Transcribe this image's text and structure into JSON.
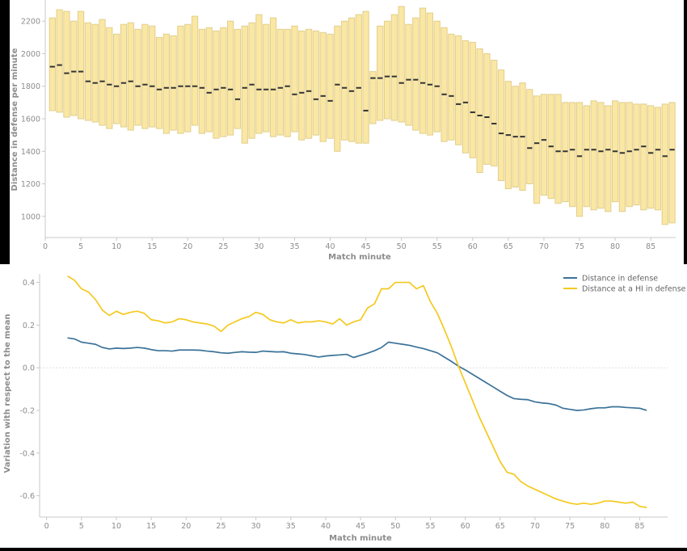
{
  "chart_data": [
    {
      "type": "bar",
      "chart_kind": "floating range bars with median markers",
      "xlabel": "Match minute",
      "ylabel": "Distance in defense per minute",
      "xlim": [
        0,
        88.5
      ],
      "ylim": [
        870,
        2330
      ],
      "x_ticks": [
        0,
        5,
        10,
        15,
        20,
        25,
        30,
        35,
        40,
        45,
        50,
        55,
        60,
        65,
        70,
        75,
        80,
        85
      ],
      "y_ticks": [
        1000,
        1200,
        1400,
        1600,
        1800,
        2000,
        2200
      ],
      "grid": false,
      "bar_fill": "#fbe7a4",
      "bar_edge": "#e0cf8c",
      "median_color": "#333333",
      "x": [
        1,
        2,
        3,
        4,
        5,
        6,
        7,
        8,
        9,
        10,
        11,
        12,
        13,
        14,
        15,
        16,
        17,
        18,
        19,
        20,
        21,
        22,
        23,
        24,
        25,
        26,
        27,
        28,
        29,
        30,
        31,
        32,
        33,
        34,
        35,
        36,
        37,
        38,
        39,
        40,
        41,
        42,
        43,
        44,
        45,
        46,
        47,
        48,
        49,
        50,
        51,
        52,
        53,
        54,
        55,
        56,
        57,
        58,
        59,
        60,
        61,
        62,
        63,
        64,
        65,
        66,
        67,
        68,
        69,
        70,
        71,
        72,
        73,
        74,
        75,
        76,
        77,
        78,
        79,
        80,
        81,
        82,
        83,
        84,
        85,
        86,
        87,
        88
      ],
      "low": [
        1650,
        1640,
        1610,
        1620,
        1600,
        1590,
        1580,
        1560,
        1540,
        1570,
        1550,
        1530,
        1560,
        1540,
        1550,
        1540,
        1510,
        1530,
        1510,
        1520,
        1560,
        1510,
        1520,
        1480,
        1490,
        1500,
        1540,
        1450,
        1480,
        1510,
        1520,
        1490,
        1500,
        1490,
        1520,
        1470,
        1480,
        1500,
        1460,
        1480,
        1400,
        1470,
        1460,
        1450,
        1450,
        1570,
        1590,
        1600,
        1590,
        1580,
        1560,
        1530,
        1510,
        1500,
        1520,
        1460,
        1470,
        1440,
        1390,
        1360,
        1270,
        1320,
        1310,
        1220,
        1170,
        1180,
        1160,
        1200,
        1080,
        1130,
        1110,
        1080,
        1090,
        1060,
        1000,
        1060,
        1040,
        1050,
        1030,
        1090,
        1030,
        1060,
        1070,
        1040,
        1050,
        1040,
        950,
        960
      ],
      "high": [
        2220,
        2270,
        2260,
        2200,
        2260,
        2190,
        2180,
        2210,
        2160,
        2120,
        2180,
        2190,
        2150,
        2180,
        2170,
        2100,
        2120,
        2110,
        2170,
        2180,
        2230,
        2150,
        2160,
        2140,
        2160,
        2200,
        2150,
        2170,
        2190,
        2240,
        2180,
        2220,
        2150,
        2150,
        2170,
        2140,
        2150,
        2140,
        2130,
        2120,
        2170,
        2200,
        2220,
        2240,
        2260,
        1890,
        2170,
        2200,
        2240,
        2290,
        2180,
        2220,
        2280,
        2250,
        2200,
        2160,
        2120,
        2110,
        2080,
        2070,
        2030,
        2000,
        1960,
        1900,
        1830,
        1800,
        1820,
        1780,
        1740,
        1750,
        1750,
        1750,
        1700,
        1700,
        1700,
        1680,
        1710,
        1700,
        1680,
        1710,
        1700,
        1700,
        1690,
        1690,
        1680,
        1670,
        1690,
        1700
      ],
      "median": [
        1920,
        1930,
        1880,
        1890,
        1890,
        1830,
        1820,
        1830,
        1810,
        1800,
        1820,
        1830,
        1800,
        1810,
        1800,
        1780,
        1790,
        1790,
        1800,
        1800,
        1800,
        1790,
        1760,
        1780,
        1790,
        1780,
        1720,
        1790,
        1810,
        1780,
        1780,
        1780,
        1790,
        1800,
        1750,
        1760,
        1770,
        1720,
        1740,
        1710,
        1810,
        1790,
        1770,
        1790,
        1650,
        1850,
        1850,
        1860,
        1860,
        1820,
        1840,
        1840,
        1820,
        1810,
        1800,
        1750,
        1740,
        1690,
        1700,
        1640,
        1620,
        1610,
        1570,
        1510,
        1500,
        1490,
        1490,
        1420,
        1450,
        1470,
        1430,
        1400,
        1400,
        1410,
        1370,
        1410,
        1410,
        1400,
        1410,
        1400,
        1390,
        1400,
        1410,
        1430,
        1390,
        1410,
        1370,
        1410
      ]
    },
    {
      "type": "line",
      "xlabel": "Match minute",
      "ylabel": "Variation with respect to the mean",
      "xlim": [
        -1,
        89
      ],
      "ylim": [
        -0.7,
        0.44
      ],
      "x_ticks": [
        0,
        5,
        10,
        15,
        20,
        25,
        30,
        35,
        40,
        45,
        50,
        55,
        60,
        65,
        70,
        75,
        80,
        85
      ],
      "y_ticks": [
        -0.6,
        -0.4,
        -0.2,
        0.0,
        0.2,
        0.4
      ],
      "zero_line": true,
      "grid": false,
      "legend_position": "top-right",
      "x": [
        3,
        4,
        5,
        6,
        7,
        8,
        9,
        10,
        11,
        12,
        13,
        14,
        15,
        16,
        17,
        18,
        19,
        20,
        21,
        22,
        23,
        24,
        25,
        26,
        27,
        28,
        29,
        30,
        31,
        32,
        33,
        34,
        35,
        36,
        37,
        38,
        39,
        40,
        41,
        42,
        43,
        44,
        45,
        46,
        47,
        48,
        49,
        50,
        51,
        52,
        53,
        54,
        55,
        56,
        57,
        58,
        59,
        60,
        61,
        62,
        63,
        64,
        65,
        66,
        67,
        68,
        69,
        70,
        71,
        72,
        73,
        74,
        75,
        76,
        77,
        78,
        79,
        80,
        81,
        82,
        83,
        84,
        85,
        86
      ],
      "series": [
        {
          "name": "Distance in defense",
          "color": "#3b7298",
          "values": [
            0.14,
            0.135,
            0.12,
            0.115,
            0.11,
            0.095,
            0.088,
            0.092,
            0.09,
            0.092,
            0.095,
            0.092,
            0.085,
            0.08,
            0.08,
            0.078,
            0.083,
            0.083,
            0.083,
            0.082,
            0.078,
            0.075,
            0.07,
            0.068,
            0.072,
            0.075,
            0.073,
            0.072,
            0.078,
            0.076,
            0.074,
            0.075,
            0.068,
            0.065,
            0.062,
            0.056,
            0.05,
            0.055,
            0.058,
            0.06,
            0.063,
            0.048,
            0.058,
            0.068,
            0.08,
            0.095,
            0.12,
            0.115,
            0.11,
            0.105,
            0.097,
            0.09,
            0.08,
            0.07,
            0.05,
            0.03,
            0.008,
            -0.01,
            -0.03,
            -0.05,
            -0.07,
            -0.09,
            -0.11,
            -0.13,
            -0.145,
            -0.148,
            -0.15,
            -0.16,
            -0.165,
            -0.168,
            -0.175,
            -0.19,
            -0.195,
            -0.2,
            -0.198,
            -0.192,
            -0.188,
            -0.188,
            -0.183,
            -0.183,
            -0.186,
            -0.188,
            -0.19,
            -0.2
          ]
        },
        {
          "name": "Distance at a HI in defense",
          "color": "#f4c91e",
          "values": [
            0.43,
            0.41,
            0.37,
            0.355,
            0.32,
            0.27,
            0.245,
            0.265,
            0.25,
            0.26,
            0.265,
            0.255,
            0.225,
            0.22,
            0.21,
            0.215,
            0.23,
            0.225,
            0.215,
            0.21,
            0.205,
            0.195,
            0.17,
            0.2,
            0.215,
            0.23,
            0.24,
            0.26,
            0.25,
            0.225,
            0.215,
            0.21,
            0.225,
            0.21,
            0.215,
            0.215,
            0.22,
            0.215,
            0.205,
            0.23,
            0.2,
            0.215,
            0.225,
            0.28,
            0.3,
            0.37,
            0.37,
            0.4,
            0.4,
            0.4,
            0.37,
            0.385,
            0.31,
            0.255,
            0.18,
            0.1,
            0.01,
            -0.07,
            -0.15,
            -0.23,
            -0.3,
            -0.37,
            -0.44,
            -0.49,
            -0.5,
            -0.535,
            -0.555,
            -0.57,
            -0.585,
            -0.6,
            -0.615,
            -0.625,
            -0.635,
            -0.64,
            -0.635,
            -0.64,
            -0.635,
            -0.625,
            -0.625,
            -0.63,
            -0.635,
            -0.63,
            -0.65,
            -0.655
          ]
        }
      ]
    }
  ]
}
